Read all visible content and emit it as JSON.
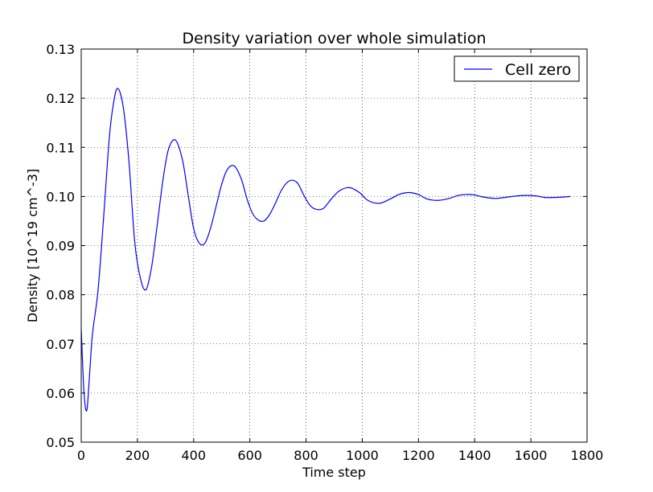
{
  "chart_data": {
    "type": "line",
    "title": "Density variation over whole simulation",
    "xlabel": "Time step",
    "ylabel": "Density [10^19 cm^-3]",
    "xlim": [
      0,
      1800
    ],
    "ylim": [
      0.05,
      0.13
    ],
    "xticks": [
      0,
      200,
      400,
      600,
      800,
      1000,
      1200,
      1400,
      1600,
      1800
    ],
    "yticks": [
      0.05,
      0.06,
      0.07,
      0.08,
      0.09,
      0.1,
      0.11,
      0.12,
      0.13
    ],
    "xtick_labels": [
      "0",
      "200",
      "400",
      "600",
      "800",
      "1000",
      "1200",
      "1400",
      "1600",
      "1800"
    ],
    "ytick_labels": [
      "0.05",
      "0.06",
      "0.07",
      "0.08",
      "0.09",
      "0.10",
      "0.11",
      "0.12",
      "0.13"
    ],
    "grid": true,
    "legend_position": "top-right",
    "series": [
      {
        "name": "Cell zero",
        "color": "#0000ff",
        "x": [
          0,
          10,
          20,
          30,
          40,
          60,
          80,
          100,
          115,
          130,
          150,
          170,
          190,
          210,
          230,
          250,
          270,
          290,
          310,
          335,
          360,
          380,
          400,
          420,
          440,
          460,
          480,
          500,
          520,
          545,
          570,
          590,
          610,
          630,
          650,
          670,
          690,
          710,
          730,
          750,
          770,
          790,
          810,
          830,
          860,
          890,
          920,
          955,
          990,
          1020,
          1060,
          1100,
          1130,
          1165,
          1200,
          1230,
          1270,
          1310,
          1340,
          1370,
          1400,
          1430,
          1475,
          1520,
          1550,
          1580,
          1620,
          1650,
          1685,
          1720,
          1740
        ],
        "y": [
          0.073,
          0.06,
          0.0565,
          0.064,
          0.072,
          0.081,
          0.096,
          0.112,
          0.119,
          0.122,
          0.118,
          0.107,
          0.091,
          0.0835,
          0.081,
          0.0855,
          0.094,
          0.103,
          0.1095,
          0.1115,
          0.1075,
          0.1005,
          0.0935,
          0.0905,
          0.0905,
          0.0935,
          0.098,
          0.1025,
          0.1055,
          0.1062,
          0.1035,
          0.0995,
          0.0965,
          0.0952,
          0.095,
          0.0963,
          0.0985,
          0.101,
          0.1027,
          0.1033,
          0.1027,
          0.1005,
          0.0985,
          0.0975,
          0.0975,
          0.0995,
          0.1012,
          0.1018,
          0.1008,
          0.0992,
          0.0986,
          0.0995,
          0.1004,
          0.1008,
          0.1004,
          0.0995,
          0.0992,
          0.0996,
          0.1002,
          0.1004,
          0.1003,
          0.0999,
          0.0996,
          0.0999,
          0.1001,
          0.1002,
          0.1001,
          0.0998,
          0.0998,
          0.0999,
          0.1
        ]
      }
    ]
  }
}
